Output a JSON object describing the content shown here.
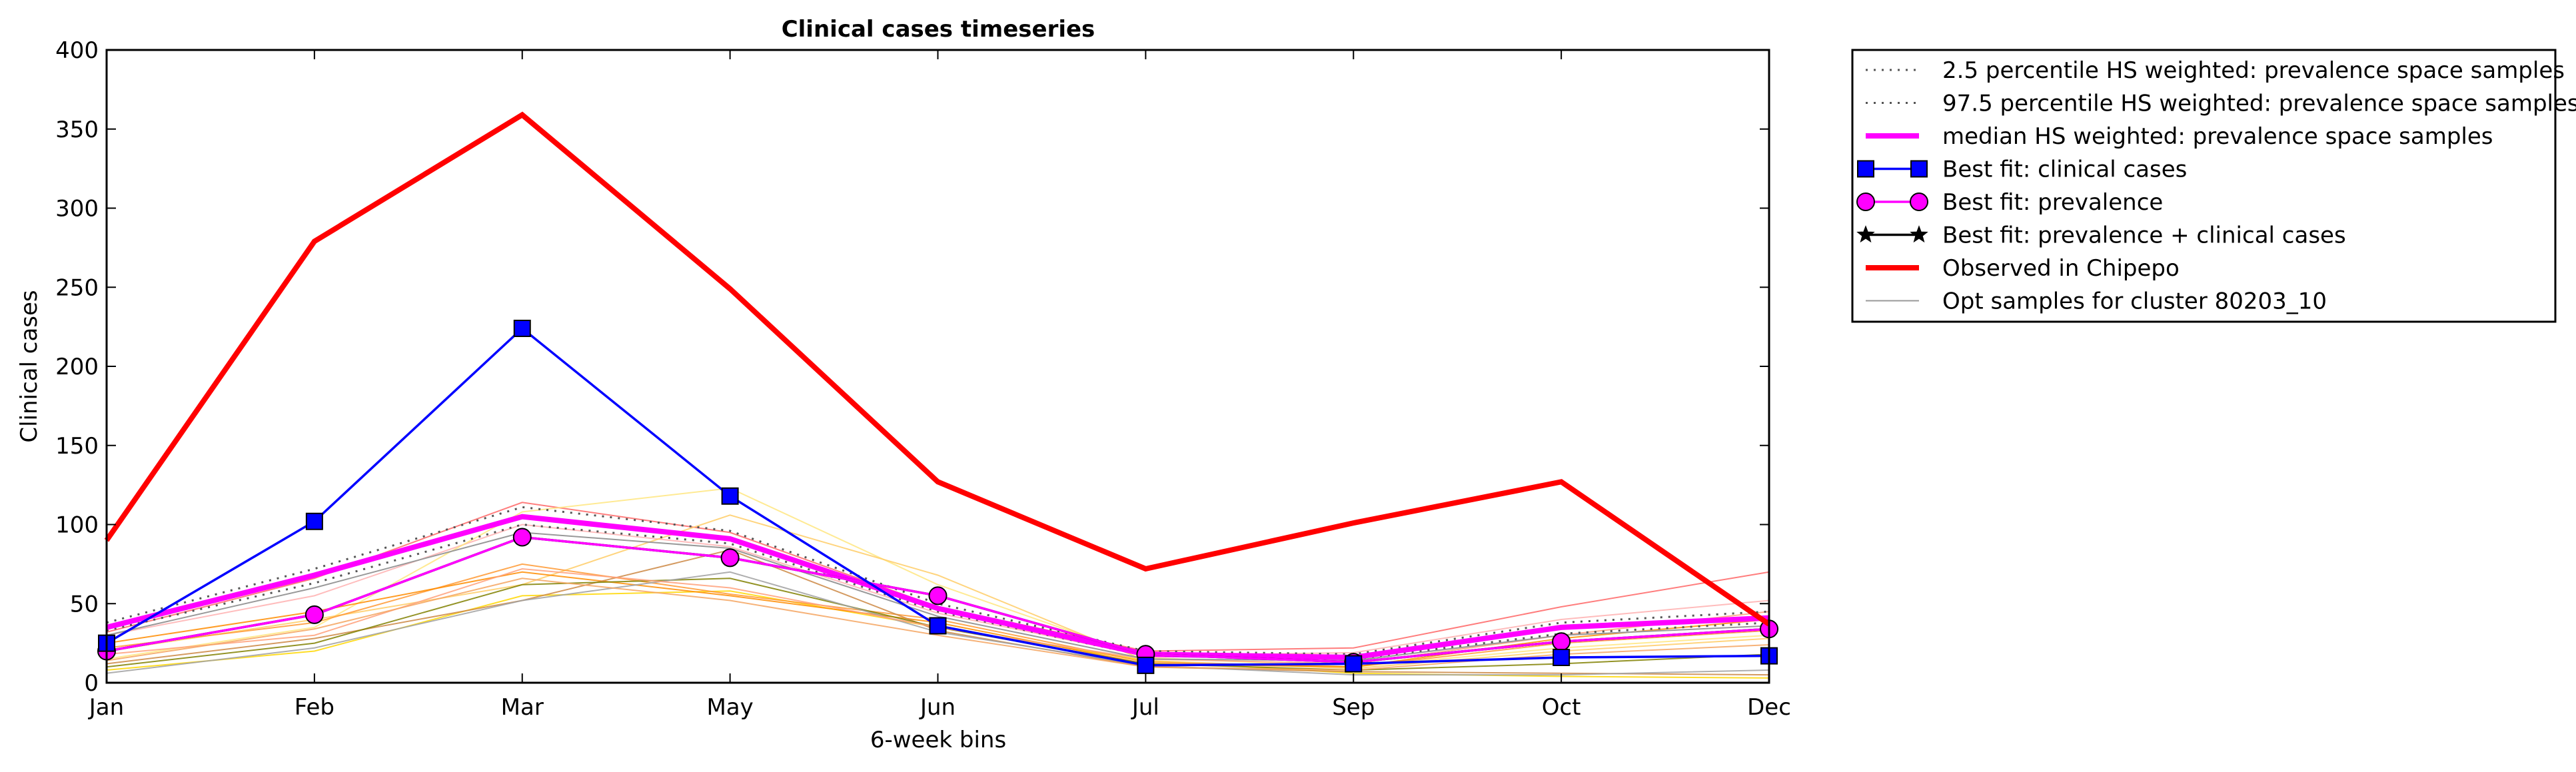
{
  "chart_data": {
    "type": "line",
    "title": "Clinical cases timeseries",
    "xlabel": "6-week bins",
    "ylabel": "Clinical cases",
    "categories": [
      "Jan",
      "Feb",
      "Mar",
      "May",
      "Jun",
      "Jul",
      "Sep",
      "Oct",
      "Dec"
    ],
    "ylim": [
      0,
      400
    ],
    "yticks": [
      0,
      50,
      100,
      150,
      200,
      250,
      300,
      350,
      400
    ],
    "grid": false,
    "legend_position": "outside-top-right",
    "series": [
      {
        "name": "2.5 percentile HS weighted: prevalence space samples",
        "color": "#555555",
        "style": "dotted",
        "values": [
          33,
          63,
          100,
          88,
          45,
          17,
          15,
          31,
          38
        ]
      },
      {
        "name": "97.5 percentile HS weighted: prevalence space samples",
        "color": "#555555",
        "style": "dotted",
        "values": [
          38,
          72,
          111,
          96,
          50,
          20,
          18,
          38,
          45
        ]
      },
      {
        "name": "median HS weighted: prevalence space samples",
        "color": "#ff00ff",
        "style": "solid-thick",
        "values": [
          35,
          68,
          105,
          91,
          47,
          18,
          16,
          35,
          41
        ]
      },
      {
        "name": "Best fit: clinical cases",
        "color": "#0000ff",
        "marker": "square",
        "values": [
          25,
          102,
          224,
          118,
          36,
          11,
          12,
          16,
          17
        ]
      },
      {
        "name": "Best fit: prevalence",
        "color": "#ff00ff",
        "marker": "circle",
        "values": [
          20,
          43,
          92,
          79,
          55,
          18,
          13,
          26,
          34
        ]
      },
      {
        "name": "Best fit: prevalence + clinical cases",
        "color": "#000000",
        "marker": "star",
        "values": [
          20,
          43,
          92,
          79,
          55,
          18,
          13,
          26,
          34
        ]
      },
      {
        "name": "Observed in Chipepo",
        "color": "#ff0000",
        "style": "solid-thick",
        "values": [
          90,
          279,
          359,
          249,
          127,
          72,
          101,
          127,
          37
        ]
      },
      {
        "name": "Opt samples for cluster 80203_10",
        "color": "#999999",
        "style": "thin",
        "values": [
          30,
          60,
          95,
          85,
          42,
          15,
          14,
          30,
          36
        ]
      }
    ],
    "opt_samples": [
      {
        "color": "#ff6666",
        "values": [
          32,
          66,
          114,
          95,
          48,
          20,
          22,
          48,
          70
        ]
      },
      {
        "color": "#ffb0b0",
        "values": [
          30,
          55,
          100,
          86,
          44,
          17,
          19,
          40,
          52
        ]
      },
      {
        "color": "#ffd700",
        "values": [
          8,
          20,
          55,
          58,
          35,
          14,
          6,
          4,
          3
        ]
      },
      {
        "color": "#ffe680",
        "values": [
          15,
          35,
          108,
          123,
          62,
          16,
          10,
          22,
          30
        ]
      },
      {
        "color": "#ffcc66",
        "values": [
          20,
          40,
          62,
          106,
          68,
          14,
          9,
          20,
          28
        ]
      },
      {
        "color": "#ff9933",
        "values": [
          22,
          38,
          75,
          56,
          40,
          13,
          10,
          25,
          33
        ]
      },
      {
        "color": "#ff8c00",
        "values": [
          25,
          45,
          70,
          55,
          38,
          12,
          10,
          28,
          40
        ]
      },
      {
        "color": "#cc8844",
        "values": [
          12,
          28,
          52,
          84,
          33,
          10,
          7,
          6,
          5
        ]
      },
      {
        "color": "#808000",
        "values": [
          10,
          25,
          62,
          66,
          35,
          12,
          8,
          12,
          18
        ]
      },
      {
        "color": "#a0a0a0",
        "values": [
          6,
          22,
          52,
          70,
          32,
          11,
          5,
          5,
          8
        ]
      },
      {
        "color": "#ffa07a",
        "values": [
          18,
          30,
          72,
          60,
          35,
          15,
          12,
          30,
          45
        ]
      },
      {
        "color": "#f4a460",
        "values": [
          14,
          34,
          66,
          52,
          30,
          10,
          8,
          18,
          24
        ]
      }
    ]
  }
}
